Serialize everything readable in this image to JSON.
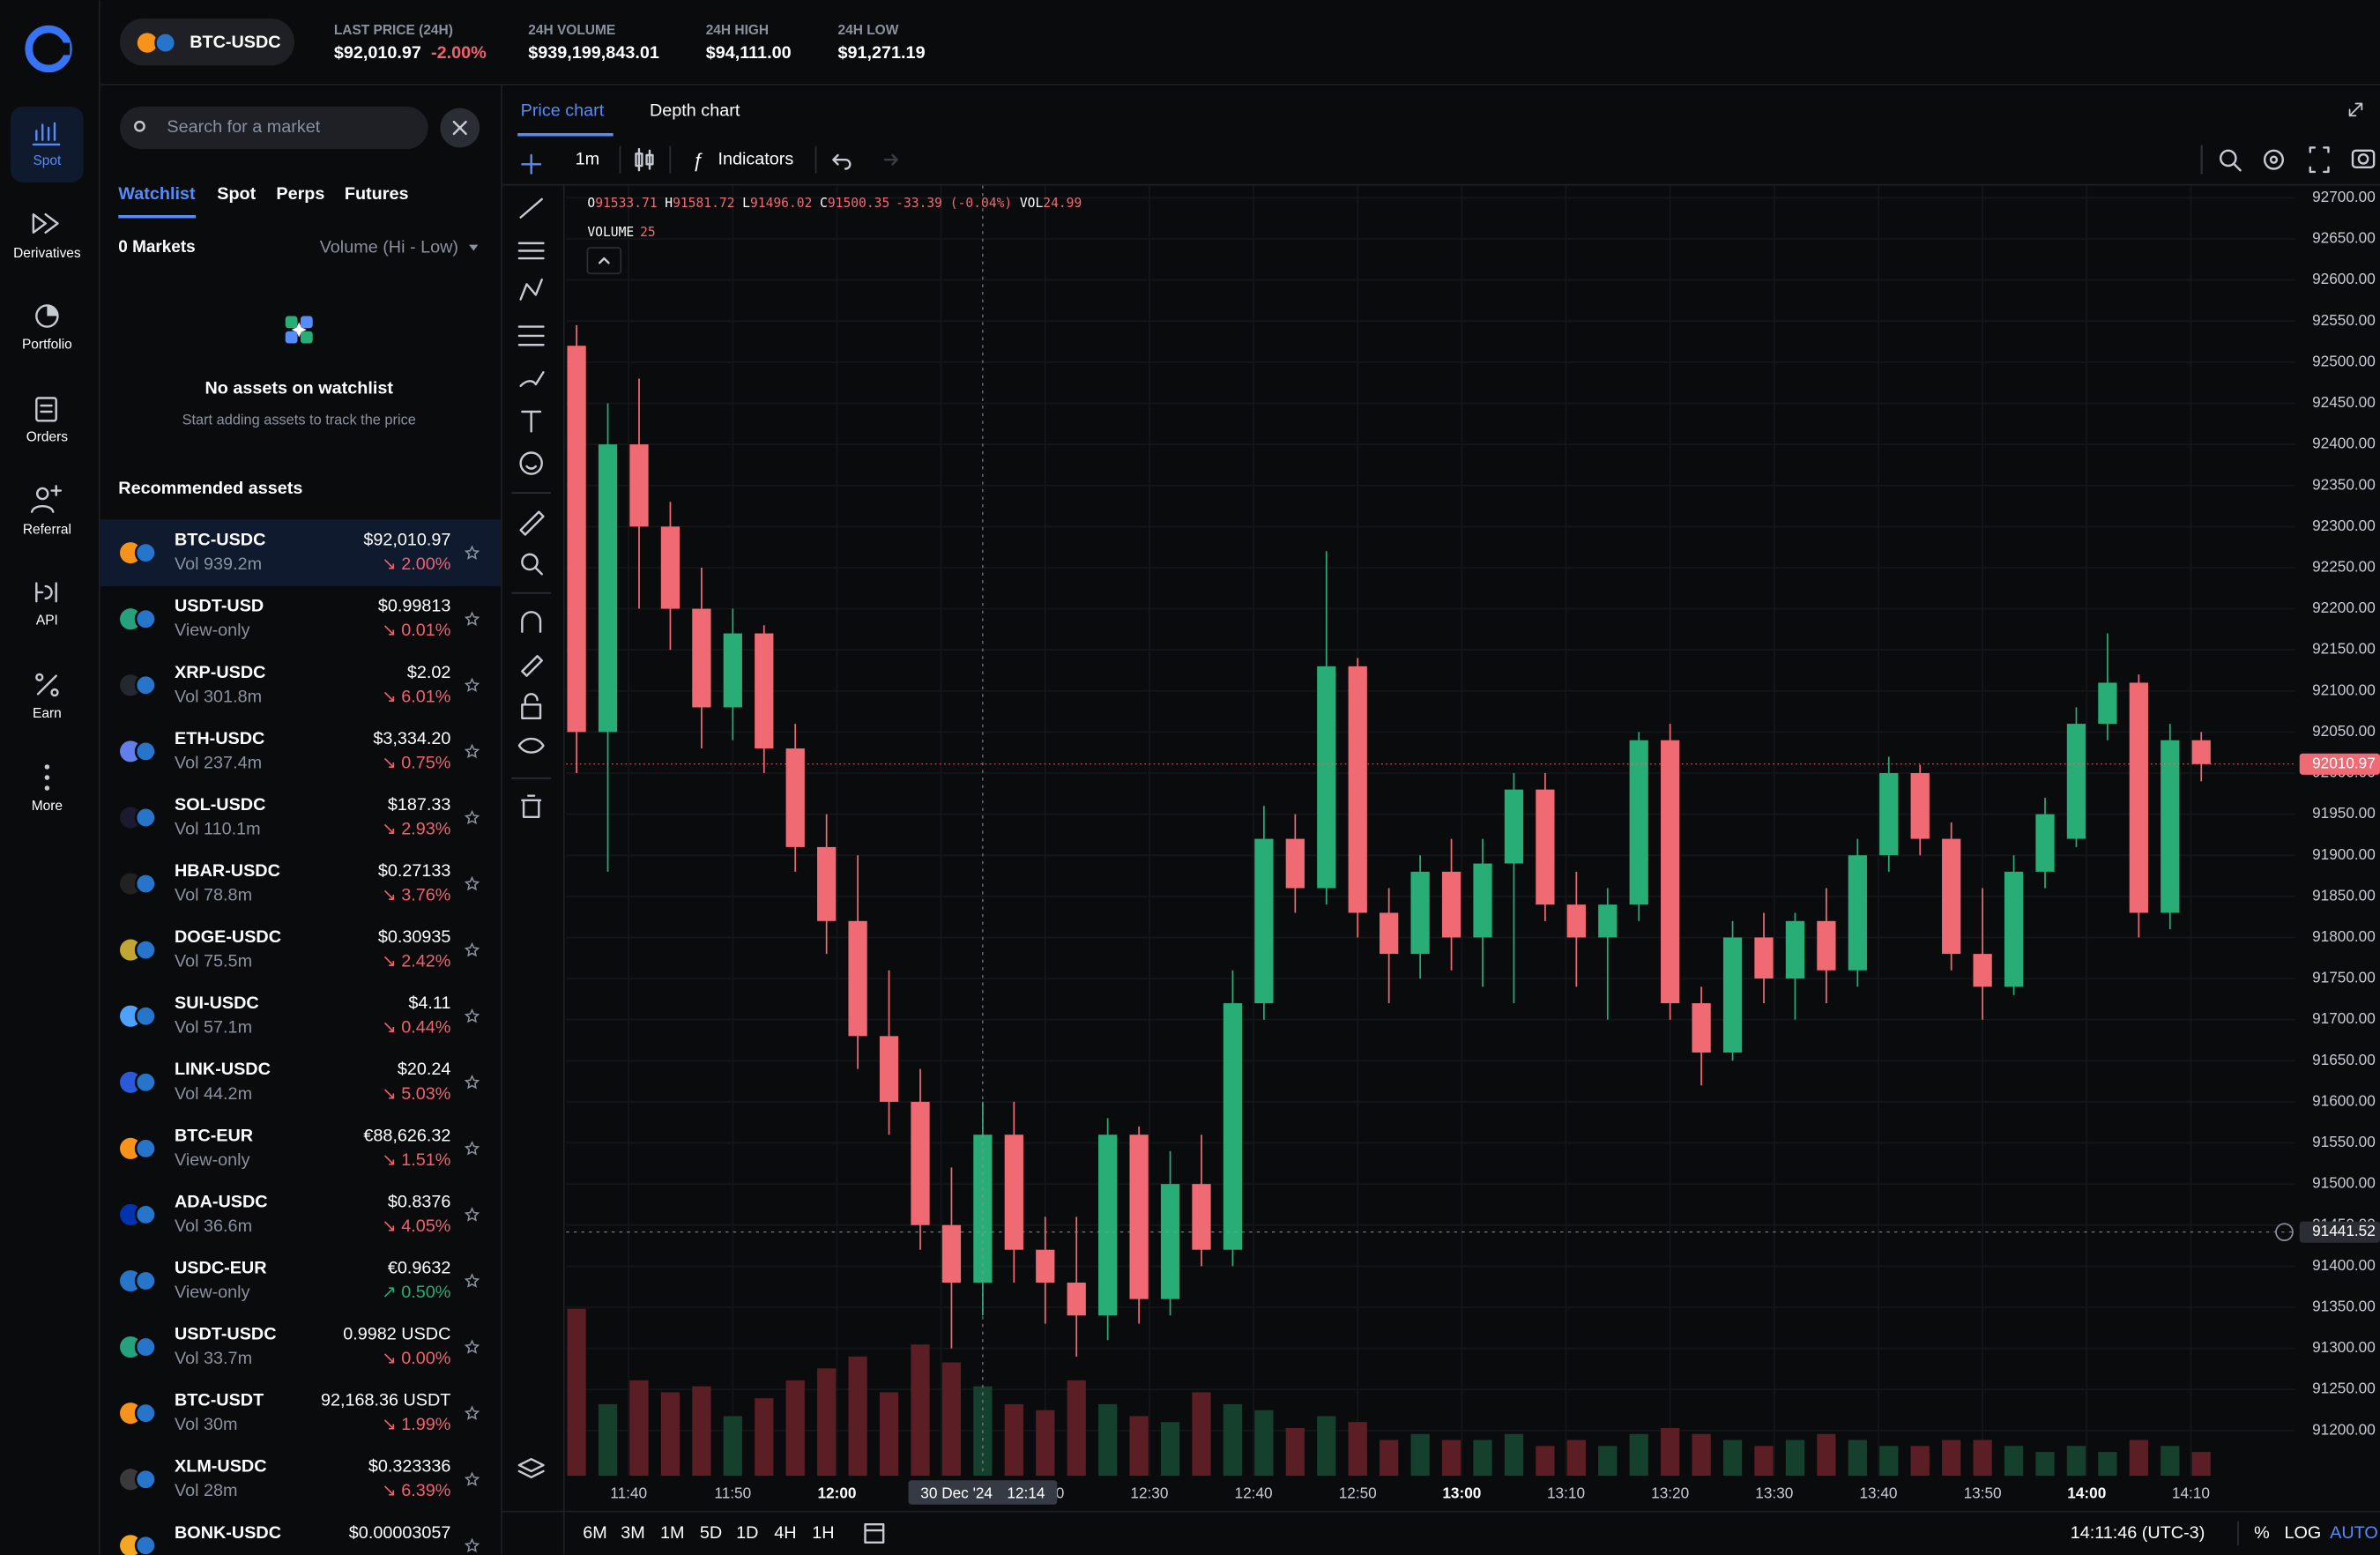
{
  "nav": [
    "Spot",
    "Derivatives",
    "Portfolio",
    "Orders",
    "Referral",
    "API",
    "Earn",
    "More"
  ],
  "header": {
    "pair": "BTC-USDC",
    "stats": [
      {
        "label": "LAST PRICE (24H)",
        "value": "$92,010.97",
        "change": "-2.00%"
      },
      {
        "label": "24H VOLUME",
        "value": "$939,199,843.01"
      },
      {
        "label": "24H HIGH",
        "value": "$94,111.00"
      },
      {
        "label": "24H LOW",
        "value": "$91,271.19"
      }
    ]
  },
  "search": {
    "placeholder": "Search for a market"
  },
  "tabs": [
    "Watchlist",
    "Spot",
    "Perps",
    "Futures"
  ],
  "markets_count": "0 Markets",
  "sort": "Volume (Hi - Low)",
  "empty": {
    "title": "No assets on watchlist",
    "subtitle": "Start adding assets to track the price"
  },
  "recommended": {
    "title": "Recommended assets",
    "rows": [
      {
        "pair": "BTC-USDC",
        "sub": "Vol 939.2m",
        "price": "$92,010.97",
        "change": "↘ 2.00%",
        "up": false,
        "color": "#f7931a"
      },
      {
        "pair": "USDT-USD",
        "sub": "View-only",
        "price": "$0.99813",
        "change": "↘ 0.01%",
        "up": false,
        "color": "#26a17b"
      },
      {
        "pair": "XRP-USDC",
        "sub": "Vol 301.8m",
        "price": "$2.02",
        "change": "↘ 6.01%",
        "up": false,
        "color": "#23292f"
      },
      {
        "pair": "ETH-USDC",
        "sub": "Vol 237.4m",
        "price": "$3,334.20",
        "change": "↘ 0.75%",
        "up": false,
        "color": "#627eea"
      },
      {
        "pair": "SOL-USDC",
        "sub": "Vol 110.1m",
        "price": "$187.33",
        "change": "↘ 2.93%",
        "up": false,
        "color": "#1b1b2f"
      },
      {
        "pair": "HBAR-USDC",
        "sub": "Vol 78.8m",
        "price": "$0.27133",
        "change": "↘ 3.76%",
        "up": false,
        "color": "#222222"
      },
      {
        "pair": "DOGE-USDC",
        "sub": "Vol 75.5m",
        "price": "$0.30935",
        "change": "↘ 2.42%",
        "up": false,
        "color": "#c2a633"
      },
      {
        "pair": "SUI-USDC",
        "sub": "Vol 57.1m",
        "price": "$4.11",
        "change": "↘ 0.44%",
        "up": false,
        "color": "#4da2ff"
      },
      {
        "pair": "LINK-USDC",
        "sub": "Vol 44.2m",
        "price": "$20.24",
        "change": "↘ 5.03%",
        "up": false,
        "color": "#2a5ada"
      },
      {
        "pair": "BTC-EUR",
        "sub": "View-only",
        "price": "€88,626.32",
        "change": "↘ 1.51%",
        "up": false,
        "color": "#f7931a"
      },
      {
        "pair": "ADA-USDC",
        "sub": "Vol 36.6m",
        "price": "$0.8376",
        "change": "↘ 4.05%",
        "up": false,
        "color": "#0033ad"
      },
      {
        "pair": "USDC-EUR",
        "sub": "View-only",
        "price": "€0.9632",
        "change": "↗ 0.50%",
        "up": true,
        "color": "#2775ca"
      },
      {
        "pair": "USDT-USDC",
        "sub": "Vol 33.7m",
        "price": "0.9982 USDC",
        "change": "↘ 0.00%",
        "up": false,
        "color": "#26a17b"
      },
      {
        "pair": "BTC-USDT",
        "sub": "Vol 30m",
        "price": "92,168.36 USDT",
        "change": "↘ 1.99%",
        "up": false,
        "color": "#f7931a"
      },
      {
        "pair": "XLM-USDC",
        "sub": "Vol 28m",
        "price": "$0.323336",
        "change": "↘ 6.39%",
        "up": false,
        "color": "#3a3a3a"
      },
      {
        "pair": "BONK-USDC",
        "price": "$0.00003057",
        "color": "#f5a623"
      }
    ]
  },
  "chart_tabs": [
    "Price chart",
    "Depth chart"
  ],
  "toolbar": {
    "interval": "1m",
    "indicators": "Indicators"
  },
  "legend": {
    "ohlc": [
      {
        "k": "O",
        "v": "91533.71"
      },
      {
        "k": "H",
        "v": "91581.72"
      },
      {
        "k": "L",
        "v": "91496.02"
      },
      {
        "k": "C",
        "v": "91500.35"
      }
    ],
    "change": "-33.39 (-0.04%)",
    "vol_label": "VOL",
    "vol_value": "24.99",
    "volume_label": "VOLUME",
    "volume_value": "25"
  },
  "chart_data": {
    "type": "candlestick",
    "x": [
      "11:35",
      "11:38",
      "11:41",
      "11:44",
      "11:47",
      "11:50",
      "11:53",
      "11:56",
      "11:59",
      "12:02",
      "12:05",
      "12:08",
      "12:11",
      "12:14",
      "12:17",
      "12:20",
      "12:23",
      "12:26",
      "12:29",
      "12:32",
      "12:35",
      "12:38",
      "12:41",
      "12:44",
      "12:47",
      "12:50",
      "12:53",
      "12:56",
      "12:59",
      "13:02",
      "13:05",
      "13:08",
      "13:11",
      "13:14",
      "13:17",
      "13:20",
      "13:23",
      "13:26",
      "13:29",
      "13:32",
      "13:35",
      "13:38",
      "13:41",
      "13:44",
      "13:47",
      "13:50",
      "13:53",
      "13:56",
      "13:59",
      "14:02",
      "14:05",
      "14:08",
      "14:11"
    ],
    "open": [
      92520,
      92050,
      92400,
      92300,
      92200,
      92080,
      92170,
      92030,
      91910,
      91820,
      91680,
      91600,
      91450,
      91380,
      91560,
      91420,
      91380,
      91340,
      91560,
      91360,
      91500,
      91420,
      91720,
      91920,
      91860,
      92130,
      91830,
      91780,
      91880,
      91800,
      91890,
      91980,
      91840,
      91800,
      91840,
      92040,
      91720,
      91660,
      91800,
      91750,
      91820,
      91760,
      91900,
      92000,
      91920,
      91780,
      91740,
      91880,
      91920,
      92060,
      92110,
      91830,
      92040
    ],
    "high": [
      92545,
      92450,
      92480,
      92330,
      92250,
      92200,
      92180,
      92060,
      91950,
      91900,
      91760,
      91640,
      91520,
      91600,
      91600,
      91460,
      91460,
      91580,
      91570,
      91540,
      91560,
      91760,
      91960,
      91950,
      92270,
      92140,
      91860,
      91900,
      91920,
      91920,
      92000,
      92000,
      91880,
      91860,
      92050,
      92060,
      91740,
      91820,
      91830,
      91830,
      91860,
      91920,
      92020,
      92010,
      91940,
      91860,
      91900,
      91970,
      92080,
      92170,
      92120,
      92060,
      92050
    ],
    "low": [
      92000,
      91880,
      92200,
      92150,
      92030,
      92040,
      92000,
      91880,
      91780,
      91640,
      91560,
      91420,
      91300,
      91340,
      91380,
      91330,
      91290,
      91310,
      91330,
      91340,
      91400,
      91400,
      91700,
      91830,
      91840,
      91800,
      91720,
      91750,
      91760,
      91740,
      91720,
      91820,
      91740,
      91700,
      91820,
      91700,
      91620,
      91650,
      91720,
      91700,
      91720,
      91740,
      91880,
      91900,
      91760,
      91700,
      91730,
      91860,
      91910,
      92040,
      91800,
      91810,
      91990
    ],
    "close": [
      92050,
      92400,
      92300,
      92200,
      92080,
      92170,
      92030,
      91910,
      91820,
      91680,
      91600,
      91450,
      91380,
      91560,
      91420,
      91380,
      91340,
      91560,
      91360,
      91500,
      91420,
      91720,
      91920,
      91860,
      92130,
      91830,
      91780,
      91880,
      91800,
      91890,
      91980,
      91840,
      91800,
      91840,
      92040,
      91720,
      91660,
      91800,
      91750,
      91820,
      91760,
      91900,
      92000,
      91920,
      91780,
      91740,
      91880,
      91950,
      92060,
      92110,
      91830,
      92040,
      92010.97
    ],
    "volume": [
      140,
      60,
      80,
      70,
      75,
      50,
      65,
      80,
      90,
      100,
      70,
      110,
      95,
      75,
      60,
      55,
      80,
      60,
      50,
      45,
      70,
      60,
      55,
      40,
      50,
      45,
      30,
      35,
      30,
      30,
      35,
      25,
      30,
      25,
      35,
      40,
      35,
      30,
      25,
      30,
      35,
      30,
      25,
      25,
      30,
      30,
      25,
      20,
      25,
      20,
      30,
      25,
      20
    ],
    "up_color": "#27ad75",
    "down_color": "#ef6a72",
    "xlim": [
      "11:34",
      "14:20"
    ],
    "xticks": [
      "11:40",
      "11:50",
      "12:00",
      "12:10",
      "12:20",
      "12:30",
      "12:40",
      "12:50",
      "13:00",
      "13:10",
      "13:20",
      "13:30",
      "13:40",
      "13:50",
      "14:00",
      "14:10"
    ],
    "ylim": [
      91145,
      92715
    ],
    "yticks": [
      {
        "value": 91200,
        "label": "91200.00"
      },
      {
        "value": 91250,
        "label": "91250.00"
      },
      {
        "value": 91300,
        "label": "91300.00"
      },
      {
        "value": 91350,
        "label": "91350.00"
      },
      {
        "value": 91400,
        "label": "91400.00"
      },
      {
        "value": 91450,
        "label": "91450.00"
      },
      {
        "value": 91500,
        "label": "91500.00"
      },
      {
        "value": 91550,
        "label": "91550.00"
      },
      {
        "value": 91600,
        "label": "91600.00"
      },
      {
        "value": 91650,
        "label": "91650.00"
      },
      {
        "value": 91700,
        "label": "91700.00"
      },
      {
        "value": 91750,
        "label": "91750.00"
      },
      {
        "value": 91800,
        "label": "91800.00"
      },
      {
        "value": 91850,
        "label": "91850.00"
      },
      {
        "value": 91900,
        "label": "91900.00"
      },
      {
        "value": 91950,
        "label": "91950.00"
      },
      {
        "value": 92000,
        "label": "92000.00"
      },
      {
        "value": 92050,
        "label": "92050.00"
      },
      {
        "value": 92100,
        "label": "92100.00"
      },
      {
        "value": 92150,
        "label": "92150.00"
      },
      {
        "value": 92200,
        "label": "92200.00"
      },
      {
        "value": 92250,
        "label": "92250.00"
      },
      {
        "value": 92300,
        "label": "92300.00"
      },
      {
        "value": 92350,
        "label": "92350.00"
      },
      {
        "value": 92400,
        "label": "92400.00"
      },
      {
        "value": 92450,
        "label": "92450.00"
      },
      {
        "value": 92500,
        "label": "92500.00"
      },
      {
        "value": 92550,
        "label": "92550.00"
      },
      {
        "value": 92600,
        "label": "92600.00"
      },
      {
        "value": 92650,
        "label": "92650.00"
      },
      {
        "value": 92700,
        "label": "92700.00"
      }
    ],
    "last_price": {
      "value": 92010.97,
      "label": "92010.97"
    },
    "crosshair": {
      "x": "12:14",
      "date_label": "30 Dec '24",
      "time_label": "12:14",
      "y": {
        "value": 91441.52,
        "label": "91441.52"
      }
    }
  },
  "ranges": [
    "6M",
    "3M",
    "1M",
    "5D",
    "1D",
    "4H",
    "1H"
  ],
  "footer": {
    "clock": "14:11:46 (UTC-3)",
    "percent": "%",
    "log": "LOG",
    "auto": "AUTO"
  }
}
